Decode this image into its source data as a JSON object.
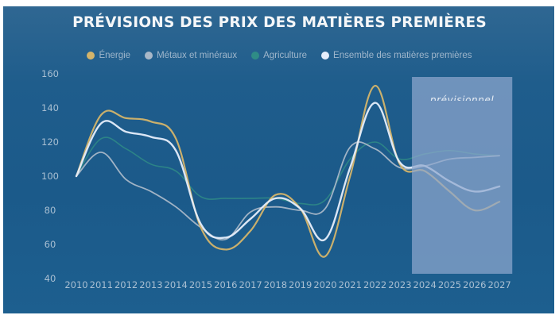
{
  "chart_data": {
    "type": "line",
    "title": "PRÉVISIONS DES PRIX DES MATIÈRES PREMIÈRES",
    "xlabel": "",
    "ylabel": "",
    "x": [
      2010,
      2011,
      2012,
      2013,
      2014,
      2015,
      2016,
      2017,
      2018,
      2019,
      2020,
      2021,
      2022,
      2023,
      2024,
      2025,
      2026,
      2027
    ],
    "x_tick_labels": [
      "2010",
      "2011",
      "2012",
      "2013",
      "2014",
      "2015",
      "2016",
      "2017",
      "2018",
      "2019",
      "2020",
      "2021",
      "2022",
      "2023",
      "2024",
      "2025",
      "2026",
      "2027"
    ],
    "y_tick_labels": [
      "40",
      "60",
      "80",
      "100",
      "120",
      "140",
      "160"
    ],
    "ylim": [
      40,
      160
    ],
    "grid": false,
    "legend_position": "top-center",
    "forecast_region": {
      "label": "prévisionnel",
      "start": 2023.5,
      "end": 2027.5,
      "color": "#8fa7cf"
    },
    "series": [
      {
        "name": "Énergie",
        "color": "#d4b46a",
        "values": [
          100,
          136,
          134,
          132,
          122,
          70,
          57,
          68,
          89,
          81,
          53,
          100,
          153,
          107,
          103,
          91,
          80,
          85
        ]
      },
      {
        "name": "Métaux et minéraux",
        "color": "#a9b8c8",
        "values": [
          100,
          114,
          98,
          91,
          82,
          70,
          63,
          79,
          82,
          80,
          81,
          117,
          116,
          105,
          106,
          110,
          111,
          112
        ]
      },
      {
        "name": "Agriculture",
        "color": "#2f8c86",
        "values": [
          100,
          122,
          116,
          107,
          103,
          88,
          87,
          87,
          87,
          84,
          86,
          110,
          120,
          110,
          113,
          115,
          113,
          112
        ]
      },
      {
        "name": "Ensemble des matières premières",
        "color": "#e6eefb",
        "values": [
          100,
          131,
          126,
          123,
          115,
          72,
          64,
          75,
          87,
          81,
          63,
          105,
          143,
          108,
          106,
          97,
          91,
          94
        ]
      }
    ]
  }
}
